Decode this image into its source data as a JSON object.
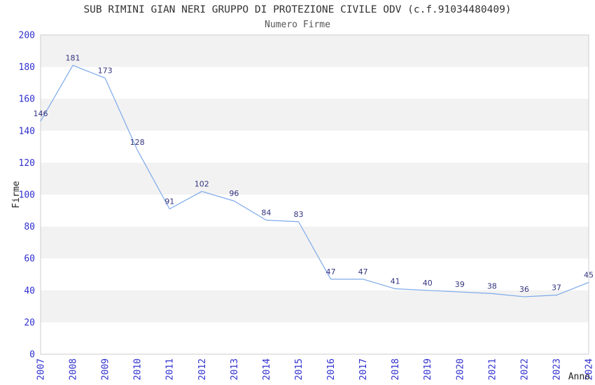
{
  "chart_data": {
    "type": "line",
    "title": "SUB RIMINI GIAN NERI GRUPPO DI PROTEZIONE CIVILE ODV (c.f.91034480409)",
    "subtitle": "Numero Firme",
    "xlabel": "Anno",
    "ylabel": "Firme",
    "categories": [
      "2007",
      "2008",
      "2009",
      "2010",
      "2011",
      "2012",
      "2013",
      "2014",
      "2015",
      "2016",
      "2017",
      "2018",
      "2019",
      "2020",
      "2021",
      "2022",
      "2023",
      "2024"
    ],
    "values": [
      146,
      181,
      173,
      128,
      91,
      102,
      96,
      84,
      83,
      47,
      47,
      41,
      40,
      39,
      38,
      36,
      37,
      45
    ],
    "ylim": [
      0,
      200
    ],
    "ytick_step": 20,
    "grid": "alternating-horizontal-bands",
    "legend": "none",
    "data_labels": "above-points",
    "xtick_rotation": 90,
    "colors": {
      "line": "#7da9ea",
      "tick_label": "#3030cf",
      "data_label": "#333380",
      "band_fill": "#f2f2f2",
      "plot_border": "#cccccc",
      "title": "#333333",
      "subtitle": "#555555",
      "axis_title": "#222222",
      "background": "#ffffff"
    }
  }
}
